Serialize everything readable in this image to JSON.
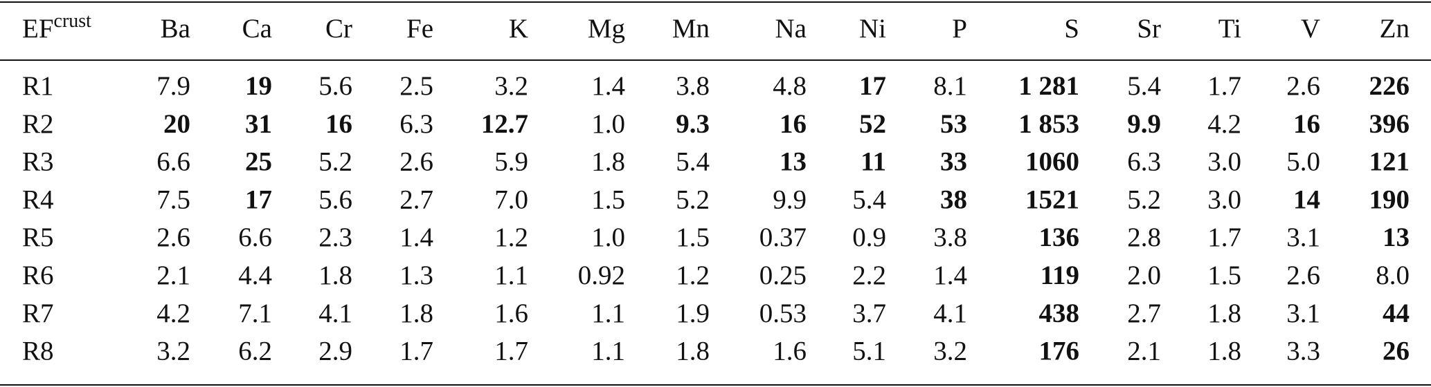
{
  "table": {
    "corner": {
      "text": "EF",
      "sup": "crust"
    },
    "columns": [
      "Ba",
      "Ca",
      "Cr",
      "Fe",
      "K",
      "Mg",
      "Mn",
      "Na",
      "Ni",
      "P",
      "S",
      "Sr",
      "Ti",
      "V",
      "Zn"
    ],
    "rows": [
      {
        "label": "R1",
        "values": [
          "7.9",
          "19",
          "5.6",
          "2.5",
          "3.2",
          "1.4",
          "3.8",
          "4.8",
          "17",
          "8.1",
          "1 281",
          "5.4",
          "1.7",
          "2.6",
          "226"
        ],
        "bold": [
          false,
          true,
          false,
          false,
          false,
          false,
          false,
          false,
          true,
          false,
          true,
          false,
          false,
          false,
          true
        ]
      },
      {
        "label": "R2",
        "values": [
          "20",
          "31",
          "16",
          "6.3",
          "12.7",
          "1.0",
          "9.3",
          "16",
          "52",
          "53",
          "1 853",
          "9.9",
          "4.2",
          "16",
          "396"
        ],
        "bold": [
          true,
          true,
          true,
          false,
          true,
          false,
          true,
          true,
          true,
          true,
          true,
          true,
          false,
          true,
          true
        ]
      },
      {
        "label": "R3",
        "values": [
          "6.6",
          "25",
          "5.2",
          "2.6",
          "5.9",
          "1.8",
          "5.4",
          "13",
          "11",
          "33",
          "1060",
          "6.3",
          "3.0",
          "5.0",
          "121"
        ],
        "bold": [
          false,
          true,
          false,
          false,
          false,
          false,
          false,
          true,
          true,
          true,
          true,
          false,
          false,
          false,
          true
        ]
      },
      {
        "label": "R4",
        "values": [
          "7.5",
          "17",
          "5.6",
          "2.7",
          "7.0",
          "1.5",
          "5.2",
          "9.9",
          "5.4",
          "38",
          "1521",
          "5.2",
          "3.0",
          "14",
          "190"
        ],
        "bold": [
          false,
          true,
          false,
          false,
          false,
          false,
          false,
          false,
          false,
          true,
          true,
          false,
          false,
          true,
          true
        ]
      },
      {
        "label": "R5",
        "values": [
          "2.6",
          "6.6",
          "2.3",
          "1.4",
          "1.2",
          "1.0",
          "1.5",
          "0.37",
          "0.9",
          "3.8",
          "136",
          "2.8",
          "1.7",
          "3.1",
          "13"
        ],
        "bold": [
          false,
          false,
          false,
          false,
          false,
          false,
          false,
          false,
          false,
          false,
          true,
          false,
          false,
          false,
          true
        ]
      },
      {
        "label": "R6",
        "values": [
          "2.1",
          "4.4",
          "1.8",
          "1.3",
          "1.1",
          "0.92",
          "1.2",
          "0.25",
          "2.2",
          "1.4",
          "119",
          "2.0",
          "1.5",
          "2.6",
          "8.0"
        ],
        "bold": [
          false,
          false,
          false,
          false,
          false,
          false,
          false,
          false,
          false,
          false,
          true,
          false,
          false,
          false,
          false
        ]
      },
      {
        "label": "R7",
        "values": [
          "4.2",
          "7.1",
          "4.1",
          "1.8",
          "1.6",
          "1.1",
          "1.9",
          "0.53",
          "3.7",
          "4.1",
          "438",
          "2.7",
          "1.8",
          "3.1",
          "44"
        ],
        "bold": [
          false,
          false,
          false,
          false,
          false,
          false,
          false,
          false,
          false,
          false,
          true,
          false,
          false,
          false,
          true
        ]
      },
      {
        "label": "R8",
        "values": [
          "3.2",
          "6.2",
          "2.9",
          "1.7",
          "1.7",
          "1.1",
          "1.8",
          "1.6",
          "5.1",
          "3.2",
          "176",
          "2.1",
          "1.8",
          "3.3",
          "26"
        ],
        "bold": [
          false,
          false,
          false,
          false,
          false,
          false,
          false,
          false,
          false,
          false,
          true,
          false,
          false,
          false,
          true
        ]
      }
    ]
  }
}
